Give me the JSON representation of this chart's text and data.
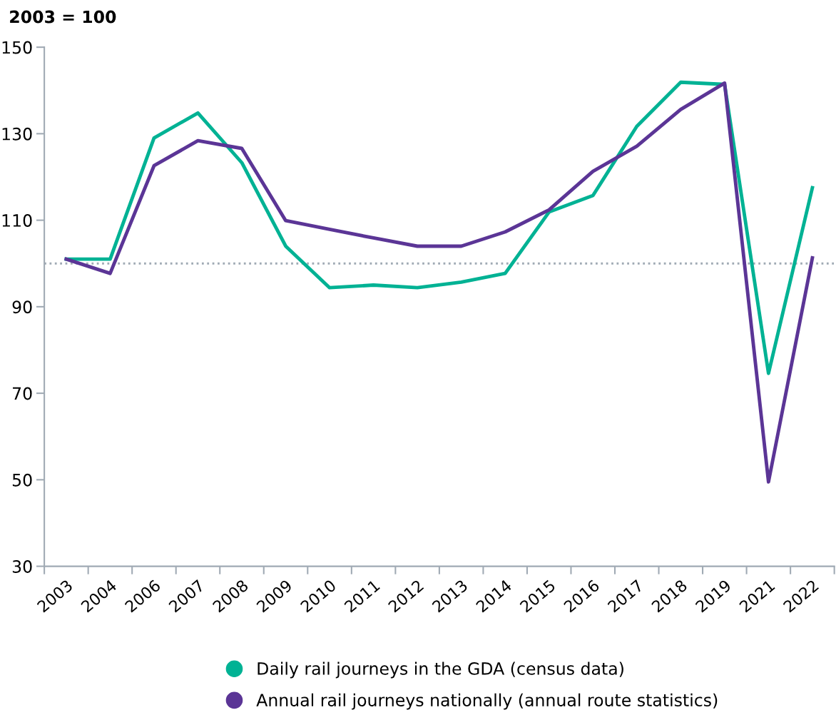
{
  "chart_data": {
    "type": "line",
    "ylabel": "2003 = 100",
    "categories": [
      "2003",
      "2004",
      "2006",
      "2007",
      "2008",
      "2009",
      "2010",
      "2011",
      "2012",
      "2013",
      "2014",
      "2015",
      "2016",
      "2017",
      "2018",
      "2019",
      "2021",
      "2022"
    ],
    "series": [
      {
        "name": "Daily rail journeys in the GDA (census data)",
        "color": "#00b294",
        "values": [
          101,
          101,
          129,
          134.8,
          123.3,
          104,
          94.4,
          95,
          94.4,
          95.7,
          97.7,
          111.9,
          115.7,
          131.7,
          141.9,
          141.4,
          74.6,
          117.5
        ]
      },
      {
        "name": "Annual rail journeys nationally (annual route statistics)",
        "color": "#5b3596",
        "values": [
          101,
          97.7,
          122.6,
          128.4,
          126.6,
          109.9,
          107.9,
          105.9,
          104,
          104,
          107.3,
          112.4,
          121.3,
          127.1,
          135.6,
          141.7,
          49.5,
          101.3
        ]
      }
    ],
    "ylim": [
      30,
      150
    ],
    "yticks": [
      30,
      50,
      70,
      90,
      110,
      130,
      150
    ],
    "ref_lines": [
      {
        "axis": "y",
        "value": 100,
        "color": "#a0aab4",
        "line_style": "dotted"
      }
    ],
    "grid": false,
    "legend": "bottom",
    "marker": "none",
    "line_style": "solid"
  }
}
